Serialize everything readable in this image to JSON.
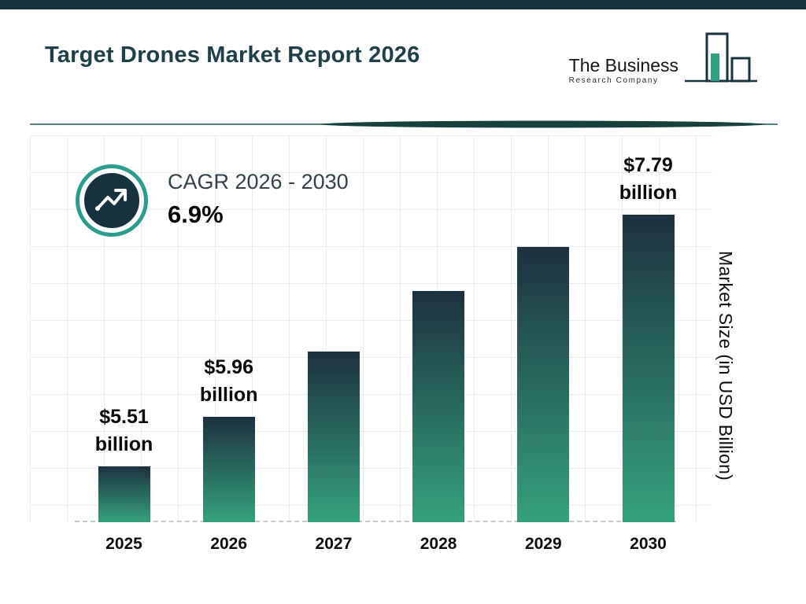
{
  "accent_bar_color": "#14333c",
  "header": {
    "title": "Target Drones Market Report 2026",
    "logo": {
      "line1": "The Business",
      "line2": "Research Company"
    }
  },
  "cagr": {
    "label": "CAGR 2026 - 2030",
    "value": "6.9%"
  },
  "chart_data": {
    "type": "bar",
    "title": "Target Drones Market Report 2026",
    "categories": [
      "2025",
      "2026",
      "2027",
      "2028",
      "2029",
      "2030"
    ],
    "values": [
      5.51,
      5.96,
      6.55,
      7.1,
      7.5,
      7.79
    ],
    "data_labels": [
      [
        "$5.51",
        "billion"
      ],
      [
        "$5.96",
        "billion"
      ],
      null,
      null,
      null,
      [
        "$7.79",
        "billion"
      ]
    ],
    "ylabel": "Market Size (in USD Billion)",
    "xlabel": "",
    "ylim": [
      5.0,
      8.5
    ],
    "grid": true,
    "legend": false,
    "bar_gradient": {
      "top": "#1c3140",
      "bottom": "#35a17d"
    },
    "accent_color": "#2a9d8f",
    "dark_color": "#16323f"
  }
}
